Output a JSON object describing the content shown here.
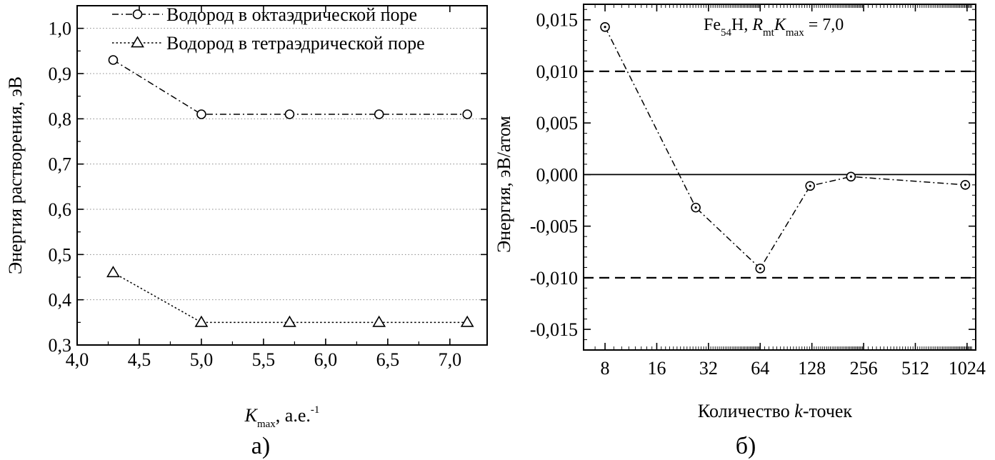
{
  "chart_data": [
    {
      "type": "line",
      "caption": "а)",
      "ylabel": "Энергия растворения, эВ",
      "xlabel": {
        "main": "K",
        "sub": "max",
        "rest": ", а.е.",
        "sup": "-1"
      },
      "xlim": [
        4.0,
        7.3
      ],
      "ylim": [
        0.3,
        1.05
      ],
      "xticks": [
        4.0,
        4.5,
        5.0,
        5.5,
        6.0,
        6.5,
        7.0
      ],
      "xtick_labels": [
        "4,0",
        "4,5",
        "5,0",
        "5,5",
        "6,0",
        "6,5",
        "7,0"
      ],
      "yticks": [
        0.3,
        0.4,
        0.5,
        0.6,
        0.7,
        0.8,
        0.9,
        1.0
      ],
      "ytick_labels": [
        "0,3",
        "0,4",
        "0,5",
        "0,6",
        "0,7",
        "0,8",
        "0,9",
        "1,0"
      ],
      "grid": "horizontal dotted",
      "legend_position": "top-right",
      "series": [
        {
          "name": "Водород в октаэдрической поре",
          "marker": "circle",
          "linestyle": "dash-dot",
          "x": [
            4.29,
            5.0,
            5.71,
            6.43,
            7.14
          ],
          "values": [
            0.93,
            0.81,
            0.81,
            0.81,
            0.81
          ]
        },
        {
          "name": "Водород в тетраэдрической поре",
          "marker": "triangle",
          "linestyle": "dotted",
          "x": [
            4.29,
            5.0,
            5.71,
            6.43,
            7.14
          ],
          "values": [
            0.46,
            0.35,
            0.35,
            0.35,
            0.35
          ]
        }
      ]
    },
    {
      "type": "line",
      "caption": "б)",
      "ylabel": "Энергия, эВ/атом",
      "xlabel": {
        "pre": "Количество ",
        "ital": "k",
        "rest": "-точек"
      },
      "xscale": "log2",
      "xlim": [
        6,
        1150
      ],
      "ylim": [
        -0.017,
        0.0165
      ],
      "xticks": [
        8,
        16,
        32,
        64,
        128,
        256,
        512,
        1024
      ],
      "xtick_labels": [
        "8",
        "16",
        "32",
        "64",
        "128",
        "256",
        "512",
        "1024"
      ],
      "yticks": [
        -0.015,
        -0.01,
        -0.005,
        0.0,
        0.005,
        0.01,
        0.015
      ],
      "ytick_labels": [
        "-0,015",
        "-0,010",
        "-0,005",
        "0,000",
        "0,005",
        "0,010",
        "0,015"
      ],
      "reference_lines": [
        {
          "y": 0.01,
          "style": "dashed"
        },
        {
          "y": 0.0,
          "style": "solid"
        },
        {
          "y": -0.01,
          "style": "dashed"
        }
      ],
      "annotation": {
        "a": "Fe",
        "a_sub": "54",
        "b": "H, ",
        "c": "R",
        "c_sub": "mt",
        "d": "K",
        "d_sub": "max",
        "e": " = 7,0"
      },
      "series": [
        {
          "name": "",
          "marker": "dotted-circle",
          "linestyle": "dash-dot",
          "x": [
            8,
            27,
            64,
            125,
            216,
            1000
          ],
          "values": [
            0.0143,
            -0.0032,
            -0.0091,
            -0.0011,
            -0.0002,
            -0.001
          ]
        }
      ]
    }
  ]
}
